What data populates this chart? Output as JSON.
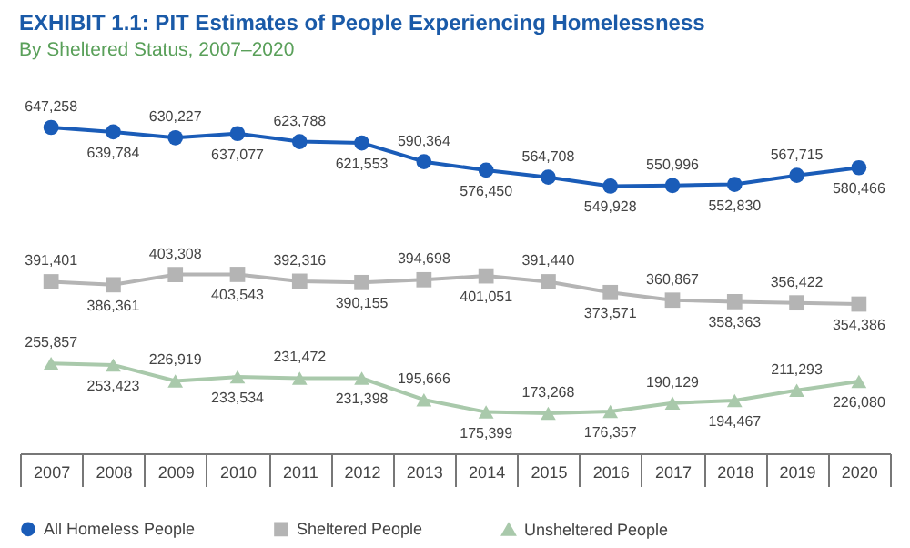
{
  "chart_data": {
    "type": "line",
    "title": "EXHIBIT 1.1: PIT Estimates of People Experiencing Homelessness",
    "subtitle": "By Sheltered Status, 2007–2020",
    "categories": [
      "2007",
      "2008",
      "2009",
      "2010",
      "2011",
      "2012",
      "2013",
      "2014",
      "2015",
      "2016",
      "2017",
      "2018",
      "2019",
      "2020"
    ],
    "series": [
      {
        "name": "All Homeless People",
        "color": "#1a5cb8",
        "marker": "circle",
        "values": [
          647258,
          639784,
          630227,
          637077,
          623788,
          621553,
          590364,
          576450,
          564708,
          549928,
          550996,
          552830,
          567715,
          580466
        ],
        "value_labels": [
          "647,258",
          "639,784",
          "630,227",
          "637,077",
          "623,788",
          "621,553",
          "590,364",
          "576,450",
          "564,708",
          "549,928",
          "550,996",
          "552,830",
          "567,715",
          "580,466"
        ]
      },
      {
        "name": "Sheltered People",
        "color": "#b4b4b4",
        "marker": "square",
        "values": [
          391401,
          386361,
          403308,
          403543,
          392316,
          390155,
          394698,
          401051,
          391440,
          373571,
          360867,
          358363,
          356422,
          354386
        ],
        "value_labels": [
          "391,401",
          "386,361",
          "403,308",
          "403,543",
          "392,316",
          "390,155",
          "394,698",
          "401,051",
          "391,440",
          "373,571",
          "360,867",
          "358,363",
          "356,422",
          "354,386"
        ]
      },
      {
        "name": "Unsheltered People",
        "color": "#a9c9ab",
        "marker": "triangle",
        "values": [
          255857,
          253423,
          226919,
          233534,
          231472,
          231398,
          195666,
          175399,
          173268,
          176357,
          190129,
          194467,
          211293,
          226080
        ],
        "value_labels": [
          "255,857",
          "253,423",
          "226,919",
          "233,534",
          "231,472",
          "231,398",
          "195,666",
          "175,399",
          "173,268",
          "176,357",
          "190,129",
          "194,467",
          "211,293",
          "226,080"
        ]
      }
    ],
    "legend": "bottom"
  }
}
